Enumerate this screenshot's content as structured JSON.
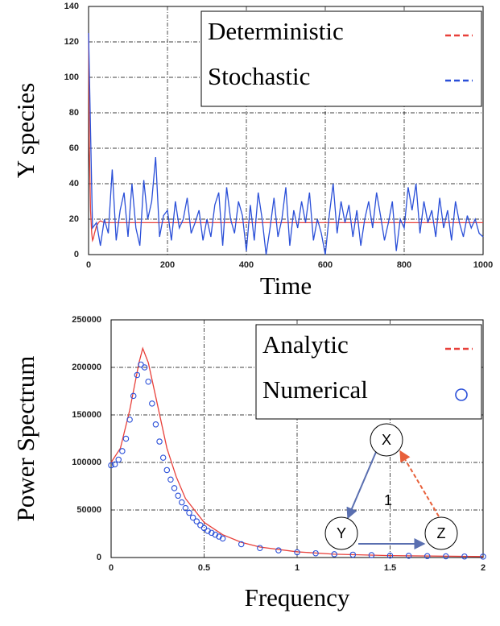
{
  "chart_data": [
    {
      "type": "line",
      "ylabel": "Y species",
      "xlabel": "Time",
      "xlim": [
        0,
        1000
      ],
      "xticks": [
        0,
        200,
        400,
        600,
        800,
        1000
      ],
      "ylim": [
        0,
        140
      ],
      "yticks": [
        0,
        20,
        40,
        60,
        80,
        100,
        120,
        140
      ],
      "grid": true,
      "legend": "upper right",
      "series": [
        {
          "name": "Deterministic",
          "color": "#e8403a",
          "style": "line",
          "x": [
            0,
            2,
            5,
            8,
            10,
            12,
            15,
            20,
            25,
            30,
            40,
            50,
            100,
            200,
            400,
            600,
            800,
            1000
          ],
          "values": [
            125,
            60,
            25,
            12,
            8,
            9,
            12,
            16,
            18,
            19,
            18,
            18,
            18,
            18,
            18,
            18,
            18,
            18
          ]
        },
        {
          "name": "Stochastic",
          "color": "#2a4fd8",
          "style": "line",
          "x": [
            0,
            10,
            20,
            30,
            40,
            50,
            60,
            70,
            80,
            90,
            100,
            110,
            120,
            130,
            140,
            150,
            160,
            170,
            180,
            190,
            200,
            210,
            220,
            230,
            240,
            250,
            260,
            270,
            280,
            290,
            300,
            310,
            320,
            330,
            340,
            350,
            360,
            370,
            380,
            390,
            400,
            410,
            420,
            430,
            440,
            450,
            460,
            470,
            480,
            490,
            500,
            510,
            520,
            530,
            540,
            550,
            560,
            570,
            580,
            590,
            600,
            610,
            620,
            630,
            640,
            650,
            660,
            670,
            680,
            690,
            700,
            710,
            720,
            730,
            740,
            750,
            760,
            770,
            780,
            790,
            800,
            810,
            820,
            830,
            840,
            850,
            860,
            870,
            880,
            890,
            900,
            910,
            920,
            930,
            940,
            950,
            960,
            970,
            980,
            990,
            1000
          ],
          "values": [
            125,
            15,
            18,
            5,
            20,
            12,
            48,
            8,
            25,
            35,
            10,
            40,
            15,
            5,
            42,
            20,
            30,
            55,
            10,
            22,
            25,
            8,
            30,
            15,
            20,
            32,
            12,
            18,
            25,
            8,
            20,
            10,
            28,
            35,
            5,
            38,
            20,
            12,
            30,
            22,
            2,
            28,
            8,
            35,
            20,
            0,
            15,
            32,
            10,
            20,
            38,
            5,
            25,
            15,
            30,
            18,
            35,
            8,
            20,
            12,
            0,
            22,
            40,
            12,
            30,
            18,
            28,
            10,
            25,
            5,
            20,
            30,
            15,
            35,
            22,
            8,
            18,
            30,
            2,
            20,
            15,
            38,
            25,
            40,
            12,
            30,
            18,
            25,
            10,
            32,
            15,
            25,
            8,
            30,
            18,
            10,
            22,
            15,
            20,
            12,
            10
          ]
        }
      ]
    },
    {
      "type": "line",
      "ylabel": "Power Spectrum",
      "xlabel": "Frequency",
      "xlim": [
        0,
        2
      ],
      "xticks": [
        0,
        0.5,
        1,
        1.5,
        2
      ],
      "ylim": [
        0,
        250000
      ],
      "yticks": [
        0,
        50000,
        100000,
        150000,
        200000,
        250000
      ],
      "grid": true,
      "legend": "upper right",
      "series": [
        {
          "name": "Analytic",
          "color": "#e8403a",
          "style": "line",
          "x": [
            0,
            0.05,
            0.1,
            0.15,
            0.17,
            0.2,
            0.25,
            0.3,
            0.35,
            0.4,
            0.5,
            0.6,
            0.7,
            0.8,
            1,
            1.2,
            1.5,
            2
          ],
          "values": [
            100000,
            115000,
            155000,
            205000,
            220000,
            205000,
            160000,
            115000,
            85000,
            62000,
            37000,
            24000,
            16000,
            11000,
            6000,
            3500,
            2000,
            1000
          ]
        },
        {
          "name": "Numerical",
          "color": "#2a4fd8",
          "style": "markers",
          "x": [
            0,
            0.02,
            0.04,
            0.06,
            0.08,
            0.1,
            0.12,
            0.14,
            0.16,
            0.18,
            0.2,
            0.22,
            0.24,
            0.26,
            0.28,
            0.3,
            0.32,
            0.34,
            0.36,
            0.38,
            0.4,
            0.42,
            0.44,
            0.46,
            0.48,
            0.5,
            0.52,
            0.54,
            0.56,
            0.58,
            0.6,
            0.7,
            0.8,
            0.9,
            1,
            1.1,
            1.2,
            1.3,
            1.4,
            1.5,
            1.6,
            1.7,
            1.8,
            1.9,
            2
          ],
          "values": [
            97000,
            98000,
            103000,
            112000,
            125000,
            145000,
            170000,
            192000,
            203000,
            200000,
            185000,
            162000,
            140000,
            122000,
            105000,
            92000,
            82000,
            73000,
            65000,
            58000,
            52000,
            47000,
            42000,
            38000,
            34000,
            31000,
            28000,
            26000,
            24000,
            22000,
            20000,
            14000,
            10000,
            7500,
            5500,
            4500,
            3500,
            3000,
            2500,
            2000,
            1800,
            1500,
            1300,
            1100,
            1000
          ]
        }
      ],
      "annotations": {
        "nodes": [
          "X",
          "Y",
          "Z"
        ],
        "edge_label": "1"
      }
    }
  ]
}
